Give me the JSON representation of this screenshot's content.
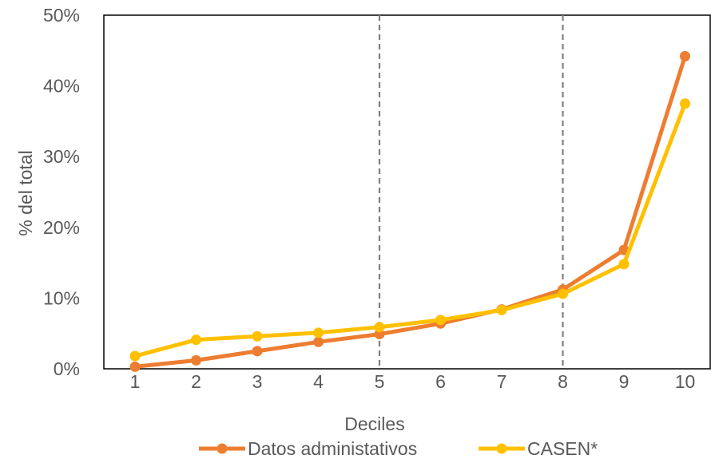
{
  "chart_data": {
    "type": "line",
    "categories": [
      "1",
      "2",
      "3",
      "4",
      "5",
      "6",
      "7",
      "8",
      "9",
      "10"
    ],
    "x": [
      1,
      2,
      3,
      4,
      5,
      6,
      7,
      8,
      9,
      10
    ],
    "series": [
      {
        "name": "Datos administativos",
        "color": "#ED7D31",
        "values": [
          0.3,
          1.2,
          2.5,
          3.8,
          4.9,
          6.4,
          8.4,
          11.2,
          16.8,
          44.2
        ]
      },
      {
        "name": "CASEN*",
        "color": "#FFC000",
        "values": [
          1.8,
          4.1,
          4.6,
          5.1,
          5.9,
          6.9,
          8.3,
          10.6,
          14.8,
          37.5
        ]
      }
    ],
    "yticks": [
      "0%",
      "10%",
      "20%",
      "30%",
      "40%",
      "50%"
    ],
    "ylim": [
      0,
      50
    ],
    "xlabel": "Deciles",
    "ylabel": "% del total",
    "reference_lines_x": [
      5,
      8
    ],
    "grid": false,
    "legend_position": "bottom"
  }
}
